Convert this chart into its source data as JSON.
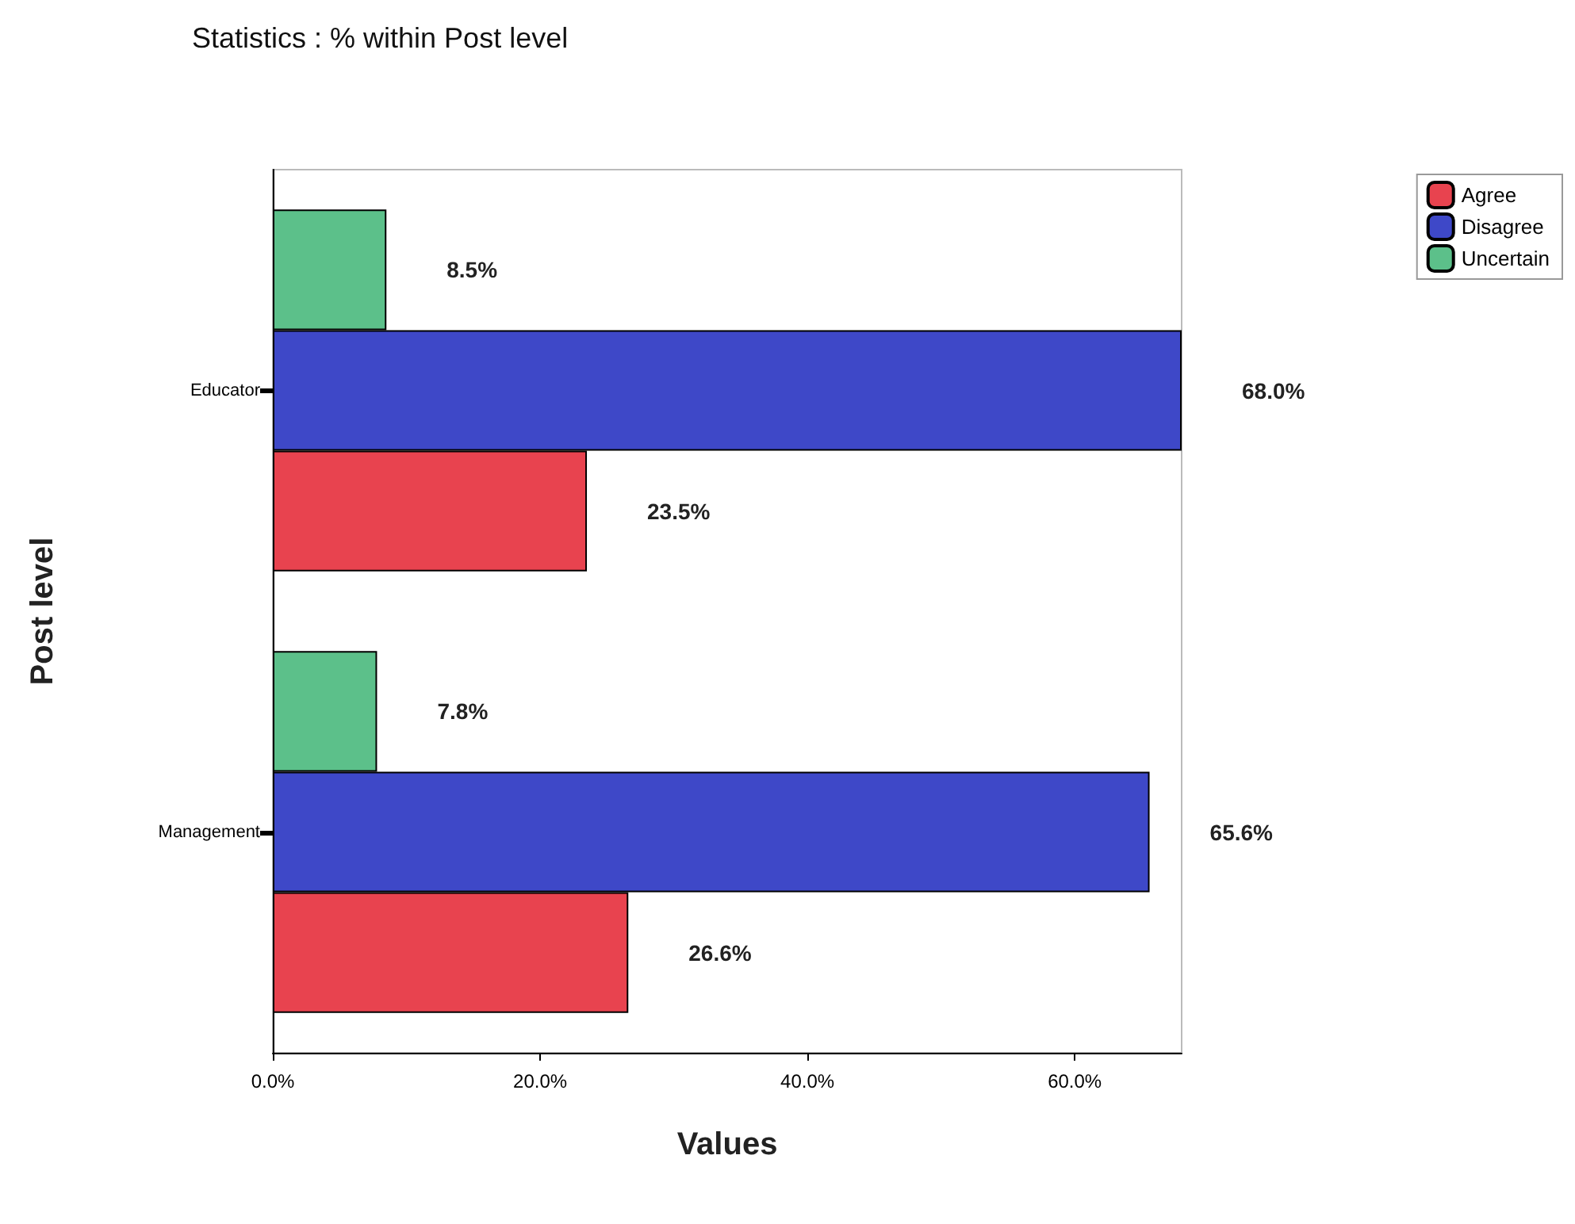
{
  "chart_data": {
    "type": "bar",
    "orientation": "horizontal",
    "title": "Statistics : % within Post level",
    "xlabel": "Values",
    "ylabel": "Post level",
    "categories": [
      "Educator",
      "Management"
    ],
    "series": [
      {
        "name": "Agree",
        "color": "#e8434f",
        "values": [
          23.5,
          26.6
        ],
        "value_labels": [
          "23.5%",
          "26.6%"
        ]
      },
      {
        "name": "Disagree",
        "color": "#3e48c8",
        "values": [
          68.0,
          65.6
        ],
        "value_labels": [
          "68.0%",
          "65.6%"
        ]
      },
      {
        "name": "Uncertain",
        "color": "#5cc08a",
        "values": [
          8.5,
          7.8
        ],
        "value_labels": [
          "8.5%",
          "7.8%"
        ]
      }
    ],
    "xlim": [
      0,
      68
    ],
    "xticks": [
      {
        "value": 0,
        "label": "0.0%"
      },
      {
        "value": 20,
        "label": "20.0%"
      },
      {
        "value": 40,
        "label": "40.0%"
      },
      {
        "value": 60,
        "label": "60.0%"
      }
    ],
    "grid": false,
    "legend": "top right"
  }
}
